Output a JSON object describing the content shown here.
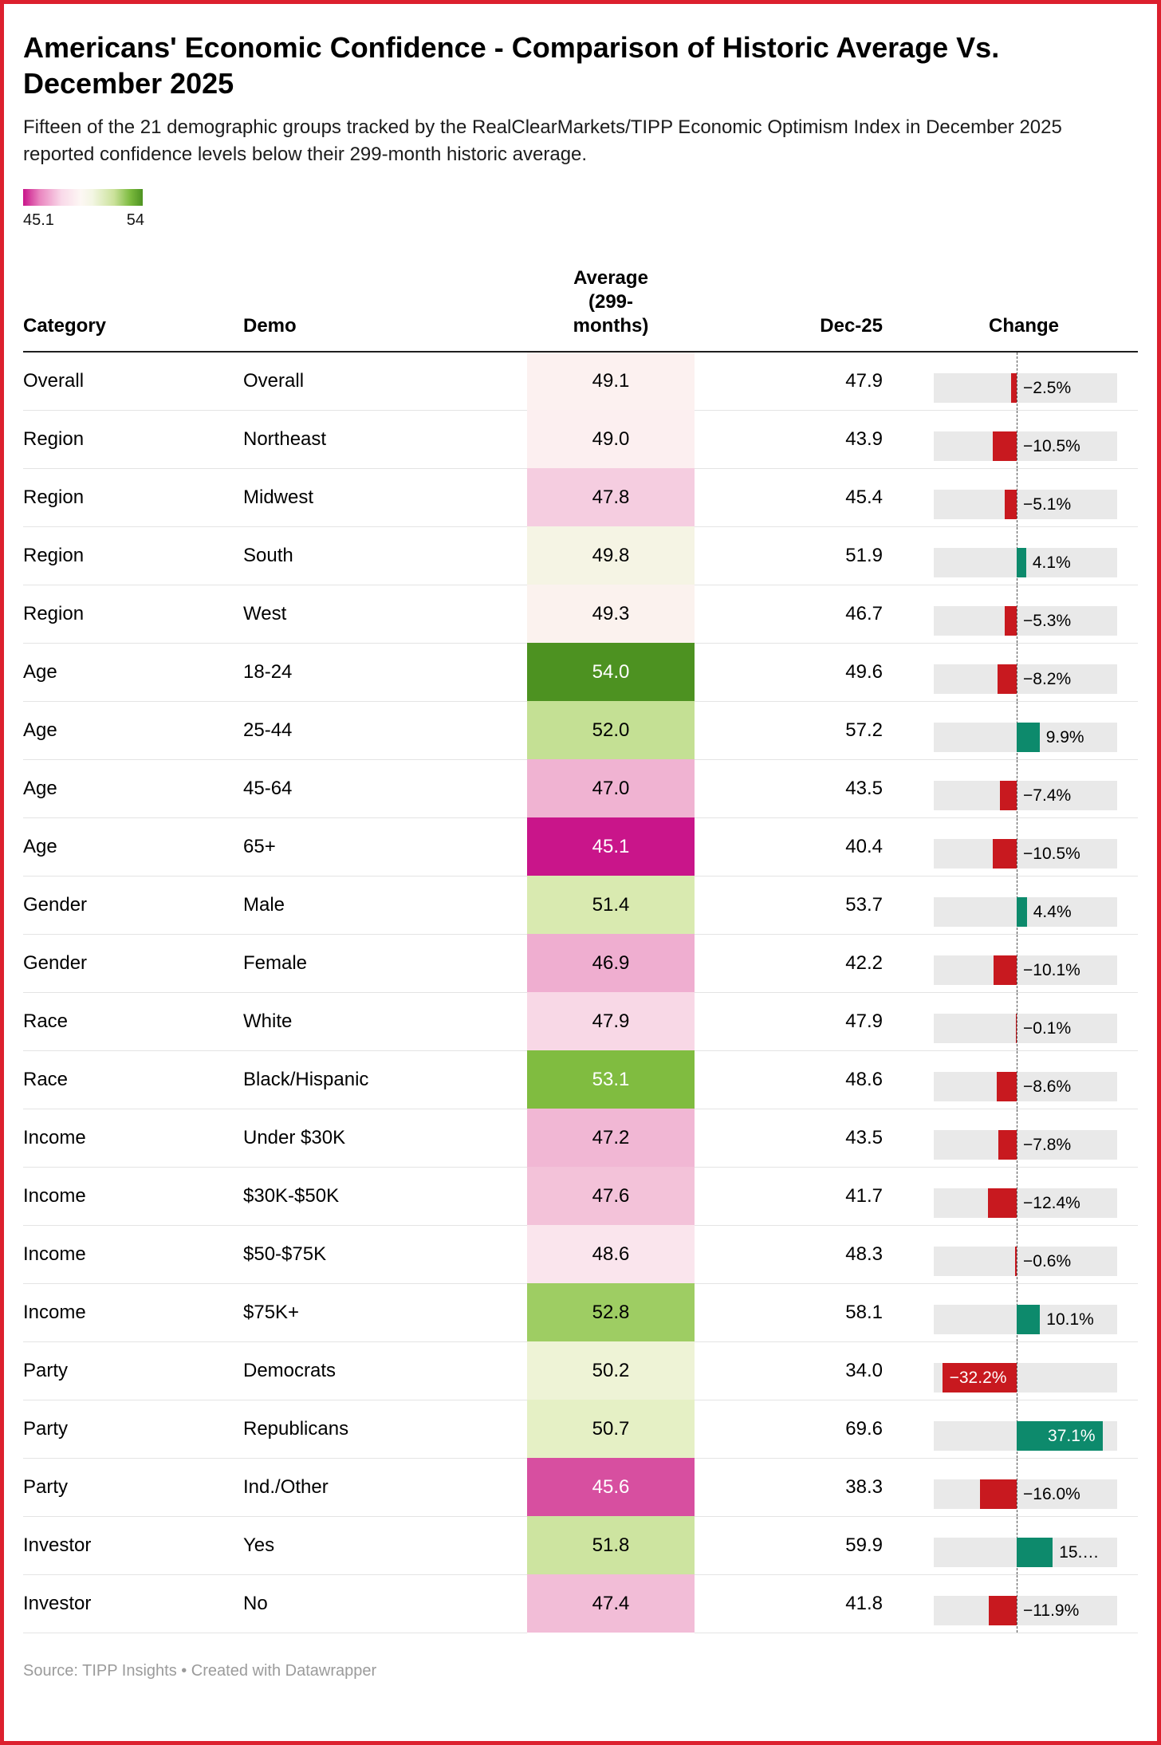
{
  "chart_data": {
    "type": "table",
    "title": "Americans' Economic Confidence - Comparison of Historic Average Vs. December 2025",
    "subtitle": "Fifteen of the 21 demographic groups tracked by the RealClearMarkets/TIPP Economic Optimism Index in December 2025 reported confidence levels below their 299-month historic average.",
    "legend": {
      "min_label": "45.1",
      "max_label": "54",
      "scale_min": 45.1,
      "scale_max": 54,
      "low_color": "#c9158a",
      "mid_color": "#fdfbf6",
      "high_color": "#4d9221"
    },
    "columns": [
      "Category",
      "Demo",
      "Average (299-months)",
      "Dec-25",
      "Change"
    ],
    "change_axis": {
      "negative_color": "#c8191f",
      "positive_color": "#0d8a6c",
      "track_color": "#e9e9e9"
    },
    "rows": [
      {
        "category": "Overall",
        "demo": "Overall",
        "average": "49.1",
        "avg_color": "#fcf1f0",
        "avg_text_color": "#000000",
        "dec25": "47.9",
        "change": -2.5,
        "change_label": "−2.5%",
        "label_inside": false
      },
      {
        "category": "Region",
        "demo": "Northeast",
        "average": "49.0",
        "avg_color": "#fceff0",
        "avg_text_color": "#000000",
        "dec25": "43.9",
        "change": -10.5,
        "change_label": "−10.5%",
        "label_inside": false
      },
      {
        "category": "Region",
        "demo": "Midwest",
        "average": "47.8",
        "avg_color": "#f5cde0",
        "avg_text_color": "#000000",
        "dec25": "45.4",
        "change": -5.1,
        "change_label": "−5.1%",
        "label_inside": false
      },
      {
        "category": "Region",
        "demo": "South",
        "average": "49.8",
        "avg_color": "#f5f4e4",
        "avg_text_color": "#000000",
        "dec25": "51.9",
        "change": 4.1,
        "change_label": "4.1%",
        "label_inside": false
      },
      {
        "category": "Region",
        "demo": "West",
        "average": "49.3",
        "avg_color": "#fbf2ee",
        "avg_text_color": "#000000",
        "dec25": "46.7",
        "change": -5.3,
        "change_label": "−5.3%",
        "label_inside": false
      },
      {
        "category": "Age",
        "demo": "18-24",
        "average": "54.0",
        "avg_color": "#4d9221",
        "avg_text_color": "#ffffff",
        "dec25": "49.6",
        "change": -8.2,
        "change_label": "−8.2%",
        "label_inside": false
      },
      {
        "category": "Age",
        "demo": "25-44",
        "average": "52.0",
        "avg_color": "#c4e094",
        "avg_text_color": "#000000",
        "dec25": "57.2",
        "change": 9.9,
        "change_label": "9.9%",
        "label_inside": false
      },
      {
        "category": "Age",
        "demo": "45-64",
        "average": "47.0",
        "avg_color": "#f0b3d2",
        "avg_text_color": "#000000",
        "dec25": "43.5",
        "change": -7.4,
        "change_label": "−7.4%",
        "label_inside": false
      },
      {
        "category": "Age",
        "demo": "65+",
        "average": "45.1",
        "avg_color": "#c9158a",
        "avg_text_color": "#ffffff",
        "dec25": "40.4",
        "change": -10.5,
        "change_label": "−10.5%",
        "label_inside": false
      },
      {
        "category": "Gender",
        "demo": "Male",
        "average": "51.4",
        "avg_color": "#d9eab0",
        "avg_text_color": "#000000",
        "dec25": "53.7",
        "change": 4.4,
        "change_label": "4.4%",
        "label_inside": false
      },
      {
        "category": "Gender",
        "demo": "Female",
        "average": "46.9",
        "avg_color": "#efaed0",
        "avg_text_color": "#000000",
        "dec25": "42.2",
        "change": -10.1,
        "change_label": "−10.1%",
        "label_inside": false
      },
      {
        "category": "Race",
        "demo": "White",
        "average": "47.9",
        "avg_color": "#f8d8e6",
        "avg_text_color": "#000000",
        "dec25": "47.9",
        "change": -0.1,
        "change_label": "−0.1%",
        "label_inside": false
      },
      {
        "category": "Race",
        "demo": "Black/Hispanic",
        "average": "53.1",
        "avg_color": "#80bc40",
        "avg_text_color": "#ffffff",
        "dec25": "48.6",
        "change": -8.6,
        "change_label": "−8.6%",
        "label_inside": false
      },
      {
        "category": "Income",
        "demo": "Under $30K",
        "average": "47.2",
        "avg_color": "#f1b7d4",
        "avg_text_color": "#000000",
        "dec25": "43.5",
        "change": -7.8,
        "change_label": "−7.8%",
        "label_inside": false
      },
      {
        "category": "Income",
        "demo": "$30K-$50K",
        "average": "47.6",
        "avg_color": "#f3c2d9",
        "avg_text_color": "#000000",
        "dec25": "41.7",
        "change": -12.4,
        "change_label": "−12.4%",
        "label_inside": false
      },
      {
        "category": "Income",
        "demo": "$50-$75K",
        "average": "48.6",
        "avg_color": "#fae5ed",
        "avg_text_color": "#000000",
        "dec25": "48.3",
        "change": -0.6,
        "change_label": "−0.6%",
        "label_inside": false
      },
      {
        "category": "Income",
        "demo": "$75K+",
        "average": "52.8",
        "avg_color": "#9ecd63",
        "avg_text_color": "#000000",
        "dec25": "58.1",
        "change": 10.1,
        "change_label": "10.1%",
        "label_inside": false
      },
      {
        "category": "Party",
        "demo": "Democrats",
        "average": "50.2",
        "avg_color": "#eef3d6",
        "avg_text_color": "#000000",
        "dec25": "34.0",
        "change": -32.2,
        "change_label": "−32.2%",
        "label_inside": true
      },
      {
        "category": "Party",
        "demo": "Republicans",
        "average": "50.7",
        "avg_color": "#e5f0c5",
        "avg_text_color": "#000000",
        "dec25": "69.6",
        "change": 37.1,
        "change_label": "37.1%",
        "label_inside": true
      },
      {
        "category": "Party",
        "demo": "Ind./Other",
        "average": "45.6",
        "avg_color": "#d74fa0",
        "avg_text_color": "#ffffff",
        "dec25": "38.3",
        "change": -16.0,
        "change_label": "−16.0%",
        "label_inside": false
      },
      {
        "category": "Investor",
        "demo": "Yes",
        "average": "51.8",
        "avg_color": "#cde4a0",
        "avg_text_color": "#000000",
        "dec25": "59.9",
        "change": 15.6,
        "change_label": "15.…",
        "label_inside": false
      },
      {
        "category": "Investor",
        "demo": "No",
        "average": "47.4",
        "avg_color": "#f2bdd7",
        "avg_text_color": "#000000",
        "dec25": "41.8",
        "change": -11.9,
        "change_label": "−11.9%",
        "label_inside": false
      }
    ]
  },
  "footer": {
    "source": "Source: TIPP Insights • Created with Datawrapper"
  }
}
